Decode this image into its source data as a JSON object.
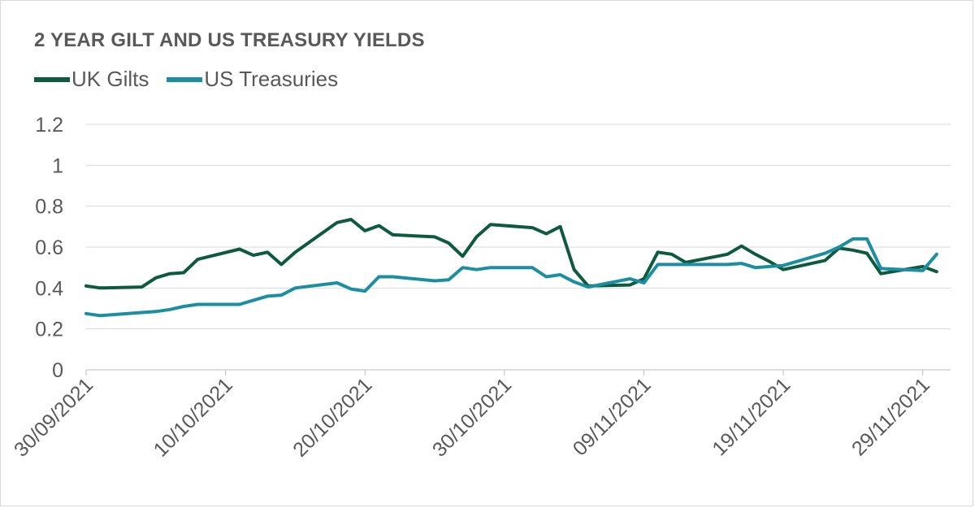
{
  "chart_data": {
    "type": "line",
    "title": "2 YEAR GILT AND US TREASURY YIELDS",
    "xlabel": "",
    "ylabel": "",
    "ylim": [
      0,
      1.2
    ],
    "yticks": [
      "0",
      "0.2",
      "0.4",
      "0.6",
      "0.8",
      "1",
      "1.2"
    ],
    "ytick_values": [
      0,
      0.2,
      0.4,
      0.6,
      0.8,
      1.0,
      1.2
    ],
    "xlim": [
      "2021-09-30",
      "2021-12-01"
    ],
    "xticks": [
      "30/09/2021",
      "10/10/2021",
      "20/10/2021",
      "30/10/2021",
      "09/11/2021",
      "19/11/2021",
      "29/11/2021"
    ],
    "xtick_dates": [
      "2021-09-30",
      "2021-10-10",
      "2021-10-20",
      "2021-10-30",
      "2021-11-09",
      "2021-11-19",
      "2021-11-29"
    ],
    "grid": "horizontal",
    "legend": "top-left",
    "series": [
      {
        "name": "UK Gilts",
        "color": "#0e5a3e",
        "points": [
          [
            "2021-09-30",
            0.41
          ],
          [
            "2021-10-01",
            0.4
          ],
          [
            "2021-10-04",
            0.405
          ],
          [
            "2021-10-05",
            0.45
          ],
          [
            "2021-10-06",
            0.47
          ],
          [
            "2021-10-07",
            0.475
          ],
          [
            "2021-10-08",
            0.54
          ],
          [
            "2021-10-11",
            0.59
          ],
          [
            "2021-10-12",
            0.56
          ],
          [
            "2021-10-13",
            0.575
          ],
          [
            "2021-10-14",
            0.515
          ],
          [
            "2021-10-15",
            0.575
          ],
          [
            "2021-10-18",
            0.72
          ],
          [
            "2021-10-19",
            0.735
          ],
          [
            "2021-10-20",
            0.68
          ],
          [
            "2021-10-21",
            0.705
          ],
          [
            "2021-10-22",
            0.66
          ],
          [
            "2021-10-25",
            0.65
          ],
          [
            "2021-10-26",
            0.62
          ],
          [
            "2021-10-27",
            0.555
          ],
          [
            "2021-10-28",
            0.65
          ],
          [
            "2021-10-29",
            0.71
          ],
          [
            "2021-11-01",
            0.695
          ],
          [
            "2021-11-02",
            0.665
          ],
          [
            "2021-11-03",
            0.7
          ],
          [
            "2021-11-04",
            0.49
          ],
          [
            "2021-11-05",
            0.41
          ],
          [
            "2021-11-08",
            0.415
          ],
          [
            "2021-11-09",
            0.445
          ],
          [
            "2021-11-10",
            0.575
          ],
          [
            "2021-11-11",
            0.565
          ],
          [
            "2021-11-12",
            0.525
          ],
          [
            "2021-11-15",
            0.565
          ],
          [
            "2021-11-16",
            0.605
          ],
          [
            "2021-11-17",
            0.565
          ],
          [
            "2021-11-18",
            0.53
          ],
          [
            "2021-11-19",
            0.49
          ],
          [
            "2021-11-22",
            0.535
          ],
          [
            "2021-11-23",
            0.595
          ],
          [
            "2021-11-24",
            0.585
          ],
          [
            "2021-11-25",
            0.57
          ],
          [
            "2021-11-26",
            0.47
          ],
          [
            "2021-11-29",
            0.505
          ],
          [
            "2021-11-30",
            0.48
          ]
        ]
      },
      {
        "name": "US Treasuries",
        "color": "#1b8ea1",
        "points": [
          [
            "2021-09-30",
            0.275
          ],
          [
            "2021-10-01",
            0.265
          ],
          [
            "2021-10-04",
            0.28
          ],
          [
            "2021-10-05",
            0.285
          ],
          [
            "2021-10-06",
            0.295
          ],
          [
            "2021-10-07",
            0.31
          ],
          [
            "2021-10-08",
            0.32
          ],
          [
            "2021-10-11",
            0.32
          ],
          [
            "2021-10-12",
            0.34
          ],
          [
            "2021-10-13",
            0.36
          ],
          [
            "2021-10-14",
            0.365
          ],
          [
            "2021-10-15",
            0.4
          ],
          [
            "2021-10-18",
            0.425
          ],
          [
            "2021-10-19",
            0.395
          ],
          [
            "2021-10-20",
            0.385
          ],
          [
            "2021-10-21",
            0.455
          ],
          [
            "2021-10-22",
            0.455
          ],
          [
            "2021-10-25",
            0.435
          ],
          [
            "2021-10-26",
            0.44
          ],
          [
            "2021-10-27",
            0.5
          ],
          [
            "2021-10-28",
            0.49
          ],
          [
            "2021-10-29",
            0.5
          ],
          [
            "2021-11-01",
            0.5
          ],
          [
            "2021-11-02",
            0.455
          ],
          [
            "2021-11-03",
            0.465
          ],
          [
            "2021-11-04",
            0.43
          ],
          [
            "2021-11-05",
            0.405
          ],
          [
            "2021-11-08",
            0.445
          ],
          [
            "2021-11-09",
            0.425
          ],
          [
            "2021-11-10",
            0.515
          ],
          [
            "2021-11-11",
            0.515
          ],
          [
            "2021-11-12",
            0.515
          ],
          [
            "2021-11-15",
            0.515
          ],
          [
            "2021-11-16",
            0.52
          ],
          [
            "2021-11-17",
            0.5
          ],
          [
            "2021-11-18",
            0.505
          ],
          [
            "2021-11-19",
            0.51
          ],
          [
            "2021-11-22",
            0.57
          ],
          [
            "2021-11-23",
            0.6
          ],
          [
            "2021-11-24",
            0.64
          ],
          [
            "2021-11-25",
            0.64
          ],
          [
            "2021-11-26",
            0.495
          ],
          [
            "2021-11-29",
            0.485
          ],
          [
            "2021-11-30",
            0.565
          ]
        ]
      }
    ]
  }
}
